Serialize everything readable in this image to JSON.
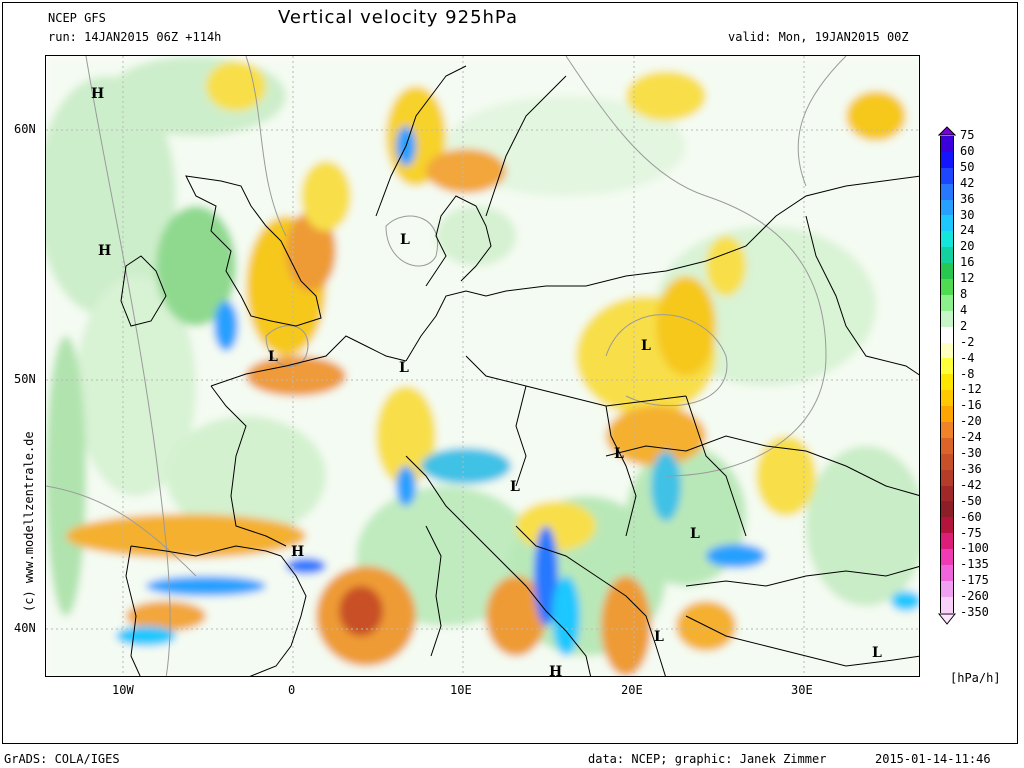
{
  "header": {
    "model": "NCEP GFS",
    "title": "Vertical velocity 925hPa",
    "run": "run: 14JAN2015 06Z +114h",
    "valid": "valid: Mon, 19JAN2015 00Z"
  },
  "axes": {
    "lat_labels": [
      "60N",
      "50N",
      "40N"
    ],
    "lon_labels": [
      "10W",
      "0",
      "10E",
      "20E",
      "30E"
    ]
  },
  "pressure_centers": [
    "H",
    "H",
    "L",
    "L",
    "L",
    "L",
    "L",
    "L",
    "H",
    "L",
    "L",
    "H",
    "L"
  ],
  "legend": {
    "unit": "[hPa/h]",
    "levels": [
      "75",
      "60",
      "50",
      "42",
      "36",
      "30",
      "24",
      "20",
      "16",
      "12",
      "8",
      "4",
      "2",
      "-2",
      "-4",
      "-8",
      "-12",
      "-16",
      "-20",
      "-24",
      "-30",
      "-36",
      "-42",
      "-50",
      "-60",
      "-75",
      "-100",
      "-135",
      "-175",
      "-260",
      "-350"
    ],
    "colors": [
      "#3c00dc",
      "#1414ff",
      "#1e46ff",
      "#2878ff",
      "#28a0ff",
      "#1ec8ff",
      "#14e6dc",
      "#14d2a0",
      "#28c850",
      "#50dc50",
      "#8cf08c",
      "#c8f5c8",
      "#ffffff",
      "#ffffc0",
      "#ffff3c",
      "#ffe600",
      "#ffc800",
      "#ffa500",
      "#f08228",
      "#dc6428",
      "#c85028",
      "#b43c28",
      "#a02828",
      "#8c1e28",
      "#b4143c",
      "#dc1e78",
      "#f03cb4",
      "#f064dc",
      "#f0a0f0",
      "#f8d0f8"
    ]
  },
  "watermark": "(c)  www.modellzentrale.de",
  "footer": {
    "software": "GrADS: COLA/IGES",
    "credit": "data: NCEP; graphic: Janek Zimmer",
    "timestamp": "2015-01-14-11:46"
  }
}
